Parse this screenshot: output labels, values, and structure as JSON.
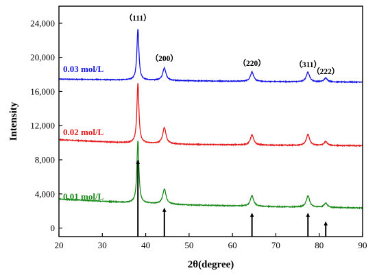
{
  "chart_data": {
    "type": "line",
    "xlabel": "2θ(degree)",
    "ylabel": "Intensity",
    "xlim": [
      20,
      90
    ],
    "ylim": [
      -1000,
      26000
    ],
    "x_ticks": [
      20,
      30,
      40,
      50,
      60,
      70,
      80,
      90
    ],
    "y_ticks": [
      0,
      4000,
      8000,
      12000,
      16000,
      20000,
      24000
    ],
    "y_tick_labels": [
      "0",
      "4,000",
      "8,000",
      "12,000",
      "16,000",
      "20,000",
      "24,000"
    ],
    "grid": false,
    "series": [
      {
        "name": "0.03 mol/L",
        "color": "#1515e6",
        "baseline": [
          [
            20,
            17450
          ],
          [
            35,
            17350
          ],
          [
            50,
            17250
          ],
          [
            70,
            17150
          ],
          [
            90,
            17100
          ]
        ],
        "peaks": [
          [
            38.2,
            6000
          ],
          [
            44.3,
            1450
          ],
          [
            64.5,
            1100
          ],
          [
            77.4,
            1150
          ],
          [
            81.5,
            450
          ]
        ]
      },
      {
        "name": "0.02 mol/L",
        "color": "#e61a1a",
        "baseline": [
          [
            20,
            10350
          ],
          [
            35,
            10000
          ],
          [
            50,
            9800
          ],
          [
            70,
            9700
          ],
          [
            90,
            9650
          ]
        ],
        "peaks": [
          [
            38.2,
            7000
          ],
          [
            44.3,
            1900
          ],
          [
            64.5,
            1200
          ],
          [
            77.4,
            1300
          ],
          [
            81.5,
            450
          ]
        ]
      },
      {
        "name": "0.01 mol/L",
        "color": "#1a8a1a",
        "baseline": [
          [
            20,
            3400
          ],
          [
            35,
            3000
          ],
          [
            50,
            2700
          ],
          [
            70,
            2500
          ],
          [
            90,
            2350
          ]
        ],
        "peaks": [
          [
            38.2,
            7300
          ],
          [
            44.3,
            1750
          ],
          [
            64.5,
            1250
          ],
          [
            77.4,
            1350
          ],
          [
            81.5,
            500
          ]
        ]
      }
    ],
    "reference_lines": [
      {
        "x": 38.2,
        "value": 8000
      },
      {
        "x": 44.3,
        "value": 2400
      },
      {
        "x": 64.5,
        "value": 1800
      },
      {
        "x": 77.4,
        "value": 1800
      },
      {
        "x": 81.5,
        "value": 800
      }
    ],
    "annotations": [
      {
        "text": "（111）",
        "x": 38.2
      },
      {
        "text": "（200）",
        "x": 44.3
      },
      {
        "text": "（220）",
        "x": 64.5
      },
      {
        "text": "（311）",
        "x": 77.4
      },
      {
        "text": "（222）",
        "x": 81.5
      }
    ]
  }
}
